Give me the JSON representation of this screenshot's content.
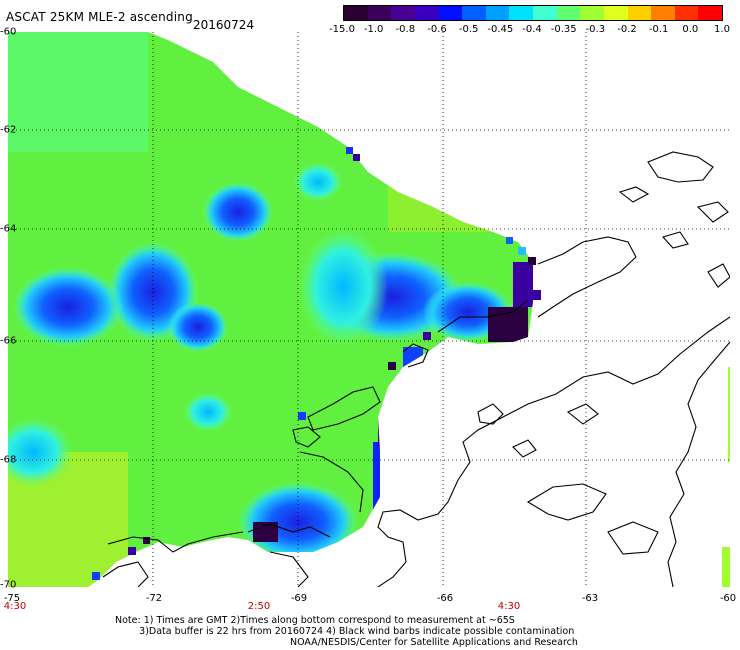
{
  "header": {
    "title": "ASCAT 25KM MLE-2 ascending",
    "date": "20160724"
  },
  "colorbar": {
    "labels": [
      "-15.0",
      "-1.0",
      "-0.8",
      "-0.6",
      "-0.5",
      "-0.45",
      "-0.4",
      "-0.35",
      "-0.3",
      "-0.2",
      "-0.1",
      "0.0",
      "1.0"
    ],
    "colors": [
      "#2a0030",
      "#3a005a",
      "#4a0090",
      "#3a00c0",
      "#0010ff",
      "#0060ff",
      "#00a0ff",
      "#00e0ff",
      "#40ffd0",
      "#60ff70",
      "#a0ff30",
      "#e0ff20",
      "#ffd000",
      "#ff8000",
      "#ff3000",
      "#ff0000"
    ]
  },
  "axes": {
    "lat_labels": [
      "-60",
      "-62",
      "-64",
      "-66",
      "-68",
      "-70"
    ],
    "lon_labels": [
      "-75",
      "-72",
      "-69",
      "-66",
      "-63",
      "-60"
    ],
    "time_labels": [
      "4:30",
      "2:50",
      "4:30"
    ]
  },
  "notes": {
    "line1": "Note: 1) Times are GMT 2)Times along bottom correspond to measurement at ~65S",
    "line2": "3)Data buffer is 22 hrs from 20160724 4) Black wind barbs indicate possible contamination",
    "credit": "NOAA/NESDIS/Center for Satellite Applications and Research"
  }
}
